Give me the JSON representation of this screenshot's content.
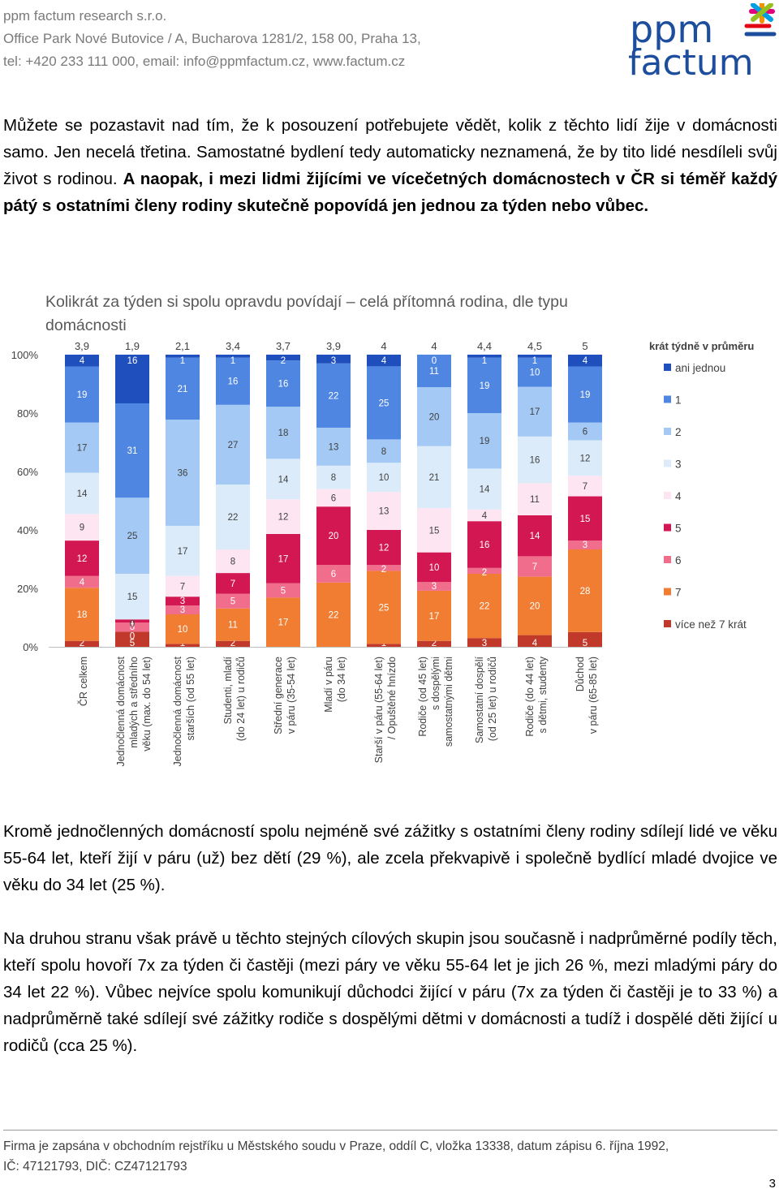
{
  "header": {
    "company": "ppm factum research s.r.o.",
    "address": "Office Park Nové Butovice / A, Bucharova 1281/2, 158 00, Praha 13,",
    "contact": "tel: +420 233 111 000, email: info@ppmfactum.cz, www.factum.cz"
  },
  "logo": {
    "line1": "ppm",
    "line2": "factum",
    "colors": [
      "#e4007c",
      "#f39200",
      "#009fe3",
      "#95c11f",
      "#e30613",
      "#1d4e9e"
    ]
  },
  "intro": {
    "normal": "Můžete se pozastavit nad tím, že k posouzení potřebujete vědět, kolik z těchto lidí žije v domácnosti samo. Jen necelá třetina. Samostatné bydlení tedy automaticky neznamená, že by tito lidé nesdíleli svůj život s rodinou. ",
    "bold": "A naopak, i mezi lidmi žijícími ve vícečetných domácnostech v ČR si téměř každý pátý s ostatními členy rodiny skutečně popovídá jen jednou za týden nebo vůbec."
  },
  "chart_title": "Kolikrát za týden si spolu opravdu povídají – celá přítomná rodina, dle typu domácnosti",
  "chart_data": {
    "type": "bar",
    "stacked": true,
    "title": "Kolikrát za týden si spolu opravdu povídají – celá přítomná rodina, dle typu domácnosti",
    "ylim": [
      0,
      100
    ],
    "ytick_labels": [
      "0%",
      "20%",
      "40%",
      "60%",
      "80%",
      "100%"
    ],
    "average_label": "krát týdně v průměru",
    "categories": [
      [
        "ČR celkem"
      ],
      [
        "Jednočlenná domácnost",
        "mladých a středního",
        "věku (max. do 54 let)"
      ],
      [
        "Jednočlenná domácnost",
        "starších (od 55 let)"
      ],
      [
        "Studenti, mladí",
        "(do 24 let) u rodičů"
      ],
      [
        "Střední generace",
        "v páru (35-54 let)"
      ],
      [
        "Mladí v páru",
        "(do 34 let)"
      ],
      [
        "Starší v páru (55-64 let)",
        "/ Opuštěné hnízdo"
      ],
      [
        "Rodiče (od 45 let)",
        "s dospělými",
        "samostatnými dětmi"
      ],
      [
        "Samostatní dospělí",
        "(od 25 let) u rodičů"
      ],
      [
        "Rodiče (do 44 let)",
        "s dětmi, studenty"
      ],
      [
        "Důchod",
        "v páru (65-85 let)"
      ]
    ],
    "averages": [
      "3,9",
      "1,9",
      "2,1",
      "3,4",
      "3,7",
      "3,9",
      "4",
      "4",
      "4,4",
      "4,5",
      "5"
    ],
    "series": [
      {
        "name": "více než 7 krát",
        "color": "#c0392b",
        "values": [
          2,
          5,
          1,
          2,
          0,
          0,
          1,
          2,
          3,
          4,
          5
        ]
      },
      {
        "name": "7",
        "color": "#f07d31",
        "values": [
          18,
          0,
          10,
          11,
          17,
          22,
          25,
          17,
          22,
          20,
          28
        ]
      },
      {
        "name": "6",
        "color": "#f06d8b",
        "values": [
          4,
          3,
          3,
          5,
          5,
          6,
          2,
          3,
          2,
          7,
          3
        ]
      },
      {
        "name": "5",
        "color": "#d31752",
        "values": [
          12,
          1,
          3,
          7,
          17,
          20,
          12,
          10,
          16,
          14,
          15
        ]
      },
      {
        "name": "4",
        "color": "#fde6f2",
        "values": [
          9,
          0,
          7,
          8,
          12,
          6,
          13,
          15,
          4,
          11,
          7
        ]
      },
      {
        "name": "3",
        "color": "#dcebfa",
        "values": [
          14,
          15,
          17,
          22,
          14,
          8,
          10,
          21,
          14,
          16,
          12
        ]
      },
      {
        "name": "2",
        "color": "#a4c9f4",
        "values": [
          17,
          25,
          36,
          27,
          18,
          13,
          8,
          20,
          19,
          17,
          6
        ]
      },
      {
        "name": "1",
        "color": "#4f86e2",
        "values": [
          19,
          31,
          21,
          16,
          16,
          22,
          25,
          11,
          19,
          10,
          19
        ]
      },
      {
        "name": "ani jednou",
        "color": "#1e4fbd",
        "values": [
          4,
          16,
          1,
          1,
          2,
          3,
          4,
          0,
          1,
          1,
          4
        ]
      }
    ],
    "legend": [
      "ani jednou",
      "1",
      "2",
      "3",
      "4",
      "5",
      "6",
      "7",
      "více než 7 krát"
    ]
  },
  "para2": "Kromě jednočlenných domácností spolu nejméně své zážitky s ostatními členy rodiny sdílejí lidé ve věku 55-64 let, kteří žijí v páru (už) bez dětí (29 %), ale zcela překvapivě i společně bydlící mladé dvojice ve věku do 34 let (25 %).",
  "para3": "Na druhou stranu však právě u těchto stejných cílových skupin jsou současně i nadprůměrné podíly těch, kteří spolu hovoří 7x za týden či častěji (mezi páry ve věku 55-64 let je jich 26 %, mezi mladými páry do 34 let 22 %). Vůbec nejvíce spolu komunikují důchodci žijící v páru (7x za týden či častěji je to 33 %) a nadprůměrně také sdílejí své zážitky rodiče s dospělými dětmi v domácnosti a tudíž i dospělé děti žijící u rodičů (cca 25 %).",
  "footer": {
    "line1": "Firma je zapsána v obchodním rejstříku u Městského soudu v Praze, oddíl C, vložka 13338, datum zápisu 6. října 1992,",
    "line2": "IČ: 47121793, DIČ: CZ47121793"
  },
  "page_number": "3"
}
